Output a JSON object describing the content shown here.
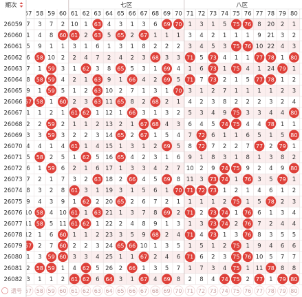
{
  "header": {
    "period": "期次",
    "zone7": "七区",
    "zone8": "八区",
    "columns": [
      "57",
      "58",
      "59",
      "60",
      "61",
      "62",
      "63",
      "64",
      "65",
      "66",
      "67",
      "68",
      "69",
      "70",
      "71",
      "72",
      "73",
      "74",
      "75",
      "76",
      "77",
      "78",
      "79",
      "80"
    ]
  },
  "rows": [
    {
      "period": "26059",
      "cells": [
        7,
        3,
        7,
        2,
        10,
        1,
        "63",
        4,
        3,
        1,
        3,
        6,
        "69",
        "70",
        1,
        3,
        1,
        5,
        "75",
        "76",
        8,
        20,
        2,
        1
      ]
    },
    {
      "period": "26060",
      "cells": [
        1,
        4,
        8,
        "60",
        "61",
        2,
        "63",
        5,
        "65",
        2,
        "67",
        1,
        1,
        1,
        3,
        4,
        2,
        1,
        1,
        1,
        9,
        21,
        3,
        2
      ]
    },
    {
      "period": "26061",
      "cells": [
        5,
        9,
        1,
        1,
        3,
        1,
        6,
        1,
        3,
        1,
        8,
        2,
        2,
        2,
        3,
        4,
        5,
        3,
        "75",
        "76",
        10,
        22,
        4,
        3
      ]
    },
    {
      "period": "26062",
      "cells": [
        6,
        "58",
        10,
        2,
        2,
        4,
        7,
        2,
        4,
        2,
        3,
        "68",
        3,
        3,
        "71",
        5,
        "73",
        4,
        1,
        1,
        "77",
        "78",
        1,
        "80"
      ]
    },
    {
      "period": "26063",
      "cells": [
        7,
        1,
        "59",
        3,
        1,
        "62",
        3,
        8,
        "65",
        5,
        3,
        1,
        "69",
        4,
        1,
        6,
        "73",
        1,
        "75",
        4,
        1,
        24,
        "79",
        1
      ]
    },
    {
      "period": "26064",
      "cells": [
        8,
        "58",
        "59",
        4,
        2,
        1,
        "63",
        9,
        1,
        "66",
        4,
        2,
        "69",
        5,
        "71",
        7,
        "73",
        2,
        1,
        5,
        "77",
        "78",
        1,
        2
      ]
    },
    {
      "period": "26065",
      "cells": [
        9,
        1,
        "59",
        5,
        1,
        2,
        "63",
        10,
        2,
        7,
        1,
        3,
        1,
        "70",
        3,
        1,
        2,
        7,
        1,
        1,
        1,
        1,
        2,
        3
      ]
    },
    {
      "period": "26066",
      "cells": [
        "57",
        "58",
        1,
        "60",
        2,
        3,
        "63",
        11,
        "65",
        8,
        2,
        "68",
        2,
        1,
        4,
        2,
        3,
        8,
        2,
        2,
        2,
        3,
        2,
        4
      ]
    },
    {
      "period": "26067",
      "cells": [
        1,
        1,
        2,
        1,
        "61",
        "62",
        1,
        12,
        1,
        "66",
        3,
        1,
        3,
        2,
        5,
        3,
        4,
        9,
        "75",
        3,
        3,
        4,
        4,
        "80"
      ]
    },
    {
      "period": "26068",
      "cells": [
        2,
        2,
        "59",
        2,
        1,
        1,
        2,
        13,
        2,
        1,
        "67",
        "68",
        4,
        3,
        6,
        4,
        5,
        "74",
        "75",
        4,
        4,
        "78",
        1,
        1
      ]
    },
    {
      "period": "26069",
      "cells": [
        3,
        3,
        "59",
        3,
        2,
        2,
        3,
        14,
        "65",
        2,
        "67",
        1,
        5,
        4,
        7,
        "72",
        6,
        1,
        1,
        6,
        5,
        1,
        5,
        "80"
      ]
    },
    {
      "period": "26070",
      "cells": [
        4,
        4,
        1,
        4,
        "61",
        1,
        4,
        15,
        1,
        3,
        1,
        2,
        "69",
        5,
        8,
        "72",
        7,
        2,
        2,
        7,
        "77",
        2,
        "79",
        1
      ]
    },
    {
      "period": "26071",
      "cells": [
        5,
        "58",
        2,
        5,
        1,
        "62",
        5,
        16,
        "65",
        4,
        2,
        3,
        1,
        6,
        9,
        1,
        8,
        3,
        1,
        8,
        1,
        3,
        8,
        2
      ]
    },
    {
      "period": "26072",
      "cells": [
        6,
        1,
        "59",
        6,
        2,
        1,
        6,
        17,
        1,
        3,
        3,
        4,
        2,
        7,
        10,
        2,
        9,
        "74",
        "75",
        9,
        2,
        4,
        9,
        "80"
      ]
    },
    {
      "period": "26073",
      "cells": [
        7,
        2,
        1,
        7,
        3,
        2,
        "63",
        18,
        2,
        "66",
        4,
        5,
        "69",
        8,
        11,
        3,
        "73",
        "74",
        1,
        "76",
        3,
        5,
        "79",
        1
      ]
    },
    {
      "period": "26074",
      "cells": [
        8,
        3,
        2,
        8,
        "61",
        3,
        1,
        19,
        3,
        1,
        5,
        6,
        1,
        "70",
        "71",
        "72",
        "73",
        1,
        2,
        1,
        4,
        6,
        1,
        2
      ]
    },
    {
      "period": "26075",
      "cells": [
        9,
        4,
        3,
        9,
        1,
        "62",
        2,
        20,
        "65",
        2,
        6,
        7,
        2,
        1,
        1,
        1,
        1,
        2,
        "75",
        1,
        5,
        "78",
        2,
        3
      ]
    },
    {
      "period": "26076",
      "cells": [
        10,
        "58",
        4,
        10,
        "61",
        1,
        "63",
        21,
        1,
        3,
        7,
        8,
        "69",
        2,
        "71",
        2,
        "73",
        "74",
        1,
        "76",
        6,
        1,
        3,
        4
      ]
    },
    {
      "period": "26077",
      "cells": [
        11,
        "58",
        5,
        11,
        "61",
        "62",
        1,
        22,
        2,
        4,
        8,
        9,
        1,
        3,
        1,
        3,
        "73",
        "74",
        2,
        "76",
        7,
        2,
        4,
        4
      ]
    },
    {
      "period": "26078",
      "cells": [
        12,
        1,
        6,
        "60",
        1,
        1,
        2,
        23,
        3,
        5,
        9,
        "68",
        2,
        4,
        "71",
        4,
        "73",
        1,
        3,
        "76",
        8,
        3,
        5,
        5
      ]
    },
    {
      "period": "26079",
      "cells": [
        "57",
        2,
        7,
        "60",
        2,
        2,
        3,
        24,
        "65",
        "66",
        10,
        1,
        3,
        5,
        1,
        5,
        1,
        2,
        "75",
        1,
        9,
        4,
        6,
        6
      ]
    },
    {
      "period": "26080",
      "cells": [
        1,
        3,
        "59",
        "60",
        3,
        3,
        4,
        25,
        1,
        1,
        "67",
        2,
        4,
        6,
        "71",
        6,
        2,
        3,
        "75",
        "76",
        10,
        5,
        7,
        7
      ]
    },
    {
      "period": "26081",
      "cells": [
        2,
        "58",
        "59",
        1,
        4,
        "62",
        5,
        26,
        2,
        "66",
        1,
        3,
        5,
        7,
        1,
        7,
        3,
        4,
        "75",
        1,
        11,
        "78",
        8,
        8
      ]
    },
    {
      "period": "26082",
      "cells": [
        3,
        1,
        1,
        2,
        "61",
        "62",
        6,
        "64",
        3,
        1,
        "67",
        4,
        "69",
        8,
        2,
        8,
        4,
        "74",
        "75",
        2,
        "77",
        1,
        "79",
        "80"
      ]
    }
  ],
  "footer": {
    "label": "遗号",
    "numbers": [
      "57",
      "58",
      "59",
      "60",
      "61",
      "62",
      "63",
      "64",
      "65",
      "66",
      "67",
      "68",
      "69",
      "70",
      "71",
      "72",
      "73",
      "74",
      "75",
      "76",
      "77",
      "78",
      "79",
      "80"
    ]
  }
}
